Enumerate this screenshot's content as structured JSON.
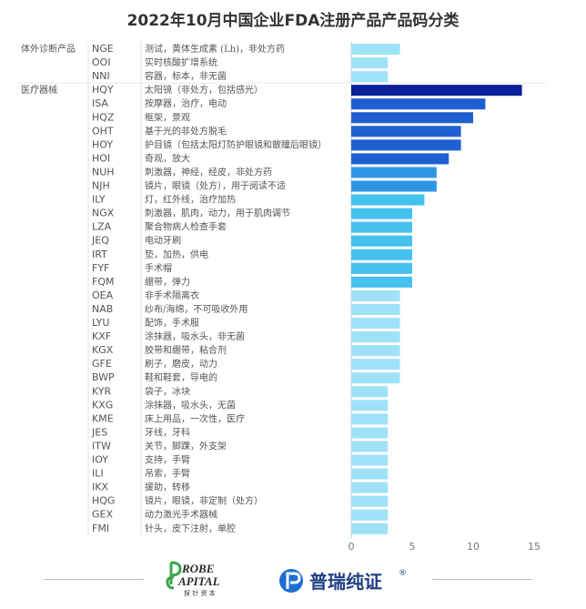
{
  "chart_data": {
    "type": "bar",
    "orientation": "horizontal",
    "title": "2022年10月中国企业FDA注册产品产品码分类",
    "xlim": [
      0,
      16
    ],
    "xticks": [
      0,
      5,
      10,
      15
    ],
    "groups": [
      {
        "label": "体外诊断产品",
        "start": 0,
        "end": 2
      },
      {
        "label": "医疗器械",
        "start": 3,
        "end": 35
      }
    ],
    "rows": [
      {
        "code": "NGE",
        "desc": "测试，黄体生成素 (Lh)，非处方药",
        "value": 4
      },
      {
        "code": "OOI",
        "desc": "实时核酸扩增系统",
        "value": 3
      },
      {
        "code": "NNI",
        "desc": "容器，标本，非无菌",
        "value": 3
      },
      {
        "code": "HQY",
        "desc": "太阳镜（非处方，包括感光）",
        "value": 14
      },
      {
        "code": "ISA",
        "desc": "按摩器，治疗，电动",
        "value": 11
      },
      {
        "code": "HQZ",
        "desc": "框架，景观",
        "value": 10
      },
      {
        "code": "OHT",
        "desc": "基于光的非处方脱毛",
        "value": 9
      },
      {
        "code": "HOY",
        "desc": "护目镜（包括太阳灯防护眼镜和散瞳后眼镜）",
        "value": 9
      },
      {
        "code": "HOI",
        "desc": "奇观，放大",
        "value": 8
      },
      {
        "code": "NUH",
        "desc": "刺激器，神经，经皮，非处方药",
        "value": 7
      },
      {
        "code": "NJH",
        "desc": "镜片，眼镜（处方），用于阅读不适",
        "value": 7
      },
      {
        "code": "ILY",
        "desc": "灯，红外线，治疗加热",
        "value": 6
      },
      {
        "code": "NGX",
        "desc": "刺激器，肌肉，动力，用于肌肉调节",
        "value": 5
      },
      {
        "code": "LZA",
        "desc": "聚合物病人检查手套",
        "value": 5
      },
      {
        "code": "JEQ",
        "desc": "电动牙刷",
        "value": 5
      },
      {
        "code": "IRT",
        "desc": "垫，加热，供电",
        "value": 5
      },
      {
        "code": "FYF",
        "desc": "手术帽",
        "value": 5
      },
      {
        "code": "FQM",
        "desc": "绷带，弹力",
        "value": 5
      },
      {
        "code": "OEA",
        "desc": "非手术隔离衣",
        "value": 4
      },
      {
        "code": "NAB",
        "desc": "纱布/海绵，不可吸收外用",
        "value": 4
      },
      {
        "code": "LYU",
        "desc": "配饰，手术服",
        "value": 4
      },
      {
        "code": "KXF",
        "desc": "涂抹器，吸水头，非无菌",
        "value": 4
      },
      {
        "code": "KGX",
        "desc": "胶带和绷带，粘合剂",
        "value": 4
      },
      {
        "code": "GFE",
        "desc": "刷子，磨皮，动力",
        "value": 4
      },
      {
        "code": "BWP",
        "desc": "鞋和鞋套，导电的",
        "value": 4
      },
      {
        "code": "KYR",
        "desc": "袋子，冰块",
        "value": 3
      },
      {
        "code": "KXG",
        "desc": "涂抹器，吸水头，无菌",
        "value": 3
      },
      {
        "code": "KME",
        "desc": "床上用品，一次性，医疗",
        "value": 3
      },
      {
        "code": "JES",
        "desc": "牙线，牙科",
        "value": 3
      },
      {
        "code": "ITW",
        "desc": "关节，脚踝，外支架",
        "value": 3
      },
      {
        "code": "IOY",
        "desc": "支持，手臂",
        "value": 3
      },
      {
        "code": "ILI",
        "desc": "吊索，手臂",
        "value": 3
      },
      {
        "code": "IKX",
        "desc": "援助，转移",
        "value": 3
      },
      {
        "code": "HQG",
        "desc": "镜片，眼镜，非定制（处方）",
        "value": 3
      },
      {
        "code": "GEX",
        "desc": "动力激光手术器械",
        "value": 3
      },
      {
        "code": "FMI",
        "desc": "针头，皮下注射，单腔",
        "value": 3
      }
    ]
  },
  "footer": {
    "logo_left_line1": "ROBE",
    "logo_left_line2": "APITAL",
    "logo_left_sub": "探 针 资 本",
    "logo_right_text": "普瑞纯证",
    "logo_right_mark": "®"
  },
  "colors": {
    "max": "#0a1f9a",
    "dark": "#1f5fd1",
    "mid": "#2f96e6",
    "light": "#45c1ee",
    "pale": "#9fe2f8"
  }
}
